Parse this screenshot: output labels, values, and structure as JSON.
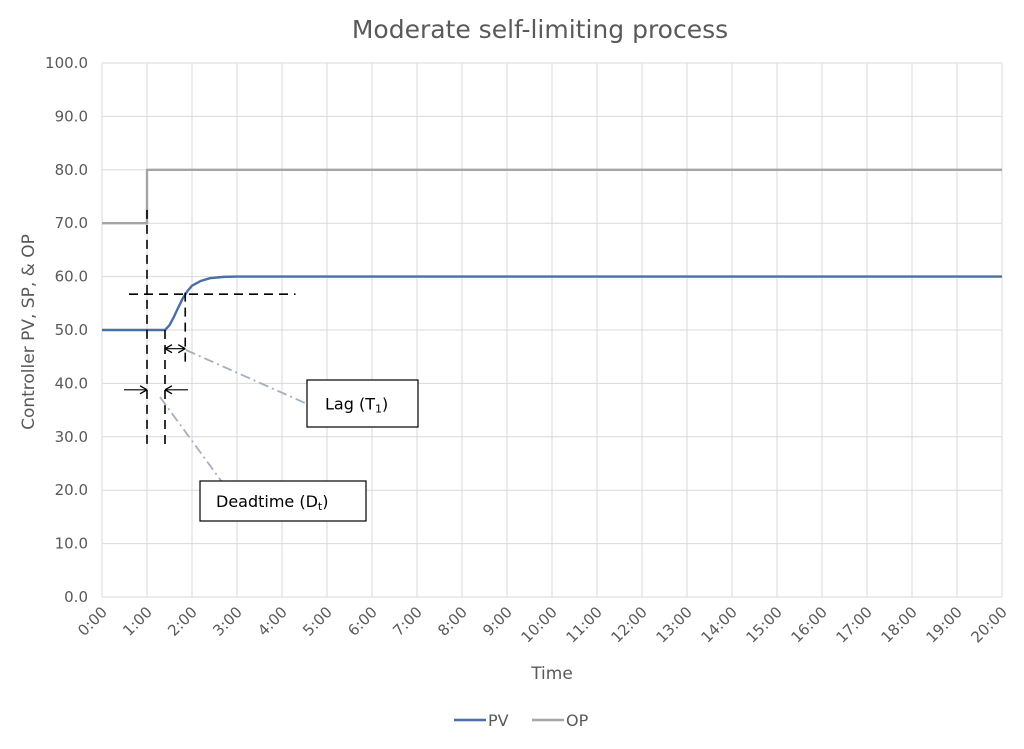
{
  "chart_data": {
    "type": "line",
    "title": "Moderate self-limiting process",
    "xlabel": "Time",
    "ylabel": "Controller PV, SP, & OP",
    "xlim": [
      0,
      20
    ],
    "ylim": [
      0,
      100
    ],
    "x_ticks": [
      "0:00",
      "1:00",
      "2:00",
      "3:00",
      "4:00",
      "5:00",
      "6:00",
      "7:00",
      "8:00",
      "9:00",
      "10:00",
      "11:00",
      "12:00",
      "13:00",
      "14:00",
      "15:00",
      "16:00",
      "17:00",
      "18:00",
      "19:00",
      "20:00"
    ],
    "y_ticks": [
      "0.0",
      "10.0",
      "20.0",
      "30.0",
      "40.0",
      "50.0",
      "60.0",
      "70.0",
      "80.0",
      "90.0",
      "100.0"
    ],
    "grid": true,
    "legend_position": "bottom",
    "series": [
      {
        "name": "PV",
        "color": "#4a6fa5",
        "points": [
          [
            0,
            50
          ],
          [
            1.4,
            50
          ],
          [
            1.5,
            50.9
          ],
          [
            1.6,
            52.5
          ],
          [
            1.7,
            54.3
          ],
          [
            1.8,
            56.0
          ],
          [
            1.9,
            57.3
          ],
          [
            2.0,
            58.3
          ],
          [
            2.2,
            59.2
          ],
          [
            2.4,
            59.7
          ],
          [
            2.7,
            59.95
          ],
          [
            3.0,
            60
          ],
          [
            20,
            60
          ]
        ]
      },
      {
        "name": "OP",
        "color": "#a5a5a5",
        "points": [
          [
            0,
            70
          ],
          [
            1,
            70
          ],
          [
            1,
            80
          ],
          [
            20,
            80
          ]
        ]
      }
    ],
    "annotations": [
      {
        "text_main": "Lag (T",
        "text_sub": "1",
        "text_end": ")"
      },
      {
        "text_main": "Deadtime (D",
        "text_sub": "t",
        "text_end": ")"
      }
    ]
  }
}
